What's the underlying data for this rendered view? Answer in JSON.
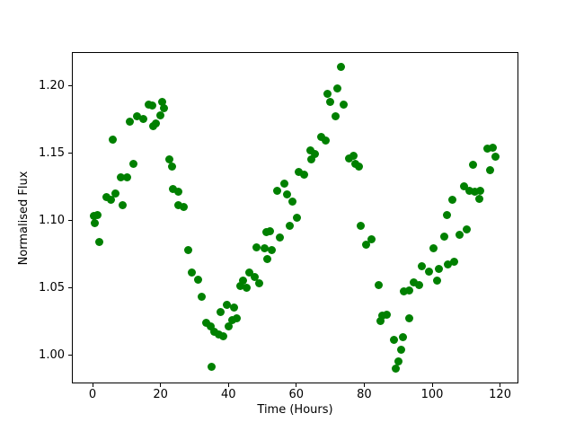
{
  "chart_data": {
    "type": "scatter",
    "title": "",
    "xlabel": "Time (Hours)",
    "ylabel": "Normalised Flux",
    "marker_color": "#008000",
    "marker_diameter_px": 9,
    "grid": false,
    "legend": null,
    "xlim": [
      -6.1,
      125.4
    ],
    "ylim": [
      0.979,
      1.225
    ],
    "xticks": {
      "values": [
        0,
        20,
        40,
        60,
        80,
        100,
        120
      ],
      "labels": [
        "0",
        "20",
        "40",
        "60",
        "80",
        "100",
        "120"
      ]
    },
    "yticks": {
      "values": [
        1.0,
        1.05,
        1.1,
        1.15,
        1.2
      ],
      "labels": [
        "1.00",
        "1.05",
        "1.10",
        "1.15",
        "1.20"
      ]
    },
    "points": {
      "x": [
        0.0,
        0.4,
        1.2,
        1.6,
        3.7,
        5.1,
        5.8,
        6.6,
        8.0,
        8.7,
        9.8,
        10.6,
        11.8,
        12.9,
        14.8,
        16.2,
        17.2,
        17.7,
        18.4,
        19.8,
        20.1,
        20.8,
        22.3,
        23.2,
        23.5,
        24.9,
        25.1,
        26.5,
        27.8,
        29.0,
        30.9,
        32.0,
        33.1,
        34.4,
        34.7,
        35.5,
        36.9,
        37.3,
        38.3,
        39.4,
        39.7,
        40.9,
        41.3,
        42.2,
        43.2,
        44.0,
        45.0,
        46.0,
        47.6,
        47.9,
        48.7,
        50.3,
        50.8,
        51.1,
        51.9,
        52.4,
        54.0,
        55.0,
        56.1,
        57.1,
        57.9,
        58.5,
        59.8,
        60.5,
        62.0,
        64.0,
        64.2,
        65.2,
        67.0,
        68.4,
        68.8,
        69.8,
        71.2,
        71.7,
        73.0,
        73.8,
        75.2,
        76.5,
        77.2,
        78.2,
        78.8,
        80.3,
        81.8,
        83.9,
        84.5,
        85.0,
        86.5,
        88.4,
        88.9,
        89.8,
        90.5,
        91.1,
        91.4,
        92.9,
        93.1,
        94.4,
        96.0,
        96.8,
        98.7,
        100.0,
        101.1,
        101.7,
        103.4,
        104.2,
        104.3,
        105.6,
        106.3,
        107.9,
        109.0,
        109.8,
        110.6,
        111.9,
        112.2,
        113.5,
        113.8,
        115.9,
        116.9,
        117.5,
        118.5
      ],
      "y": [
        1.104,
        1.099,
        1.105,
        1.085,
        1.118,
        1.116,
        1.161,
        1.121,
        1.133,
        1.112,
        1.133,
        1.174,
        1.143,
        1.178,
        1.176,
        1.187,
        1.186,
        1.171,
        1.173,
        1.179,
        1.189,
        1.184,
        1.146,
        1.141,
        1.124,
        1.122,
        1.112,
        1.111,
        1.079,
        1.062,
        1.057,
        1.044,
        1.025,
        1.022,
        0.992,
        1.018,
        1.016,
        1.033,
        1.015,
        1.038,
        1.022,
        1.027,
        1.036,
        1.028,
        1.052,
        1.056,
        1.051,
        1.062,
        1.059,
        1.081,
        1.054,
        1.08,
        1.092,
        1.072,
        1.093,
        1.079,
        1.123,
        1.088,
        1.128,
        1.12,
        1.097,
        1.115,
        1.103,
        1.137,
        1.135,
        1.153,
        1.146,
        1.15,
        1.163,
        1.16,
        1.195,
        1.189,
        1.178,
        1.199,
        1.215,
        1.187,
        1.147,
        1.149,
        1.143,
        1.141,
        1.097,
        1.083,
        1.087,
        1.053,
        1.026,
        1.03,
        1.031,
        1.012,
        0.991,
        0.996,
        1.005,
        1.014,
        1.048,
        1.049,
        1.028,
        1.055,
        1.053,
        1.067,
        1.063,
        1.08,
        1.056,
        1.065,
        1.089,
        1.105,
        1.068,
        1.116,
        1.07,
        1.09,
        1.126,
        1.094,
        1.123,
        1.142,
        1.122,
        1.117,
        1.123,
        1.154,
        1.138,
        1.155,
        1.148
      ]
    }
  }
}
